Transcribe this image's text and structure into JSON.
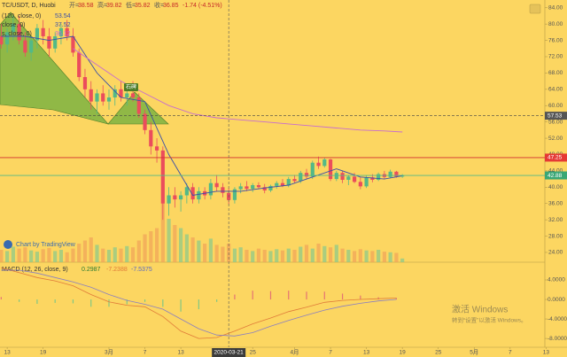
{
  "chart_data": {
    "type": "candlestick",
    "symbol": "TC/USDT, D, Huobi",
    "ohlc_legend": [
      {
        "label": "开=",
        "value": 38.58
      },
      {
        "label": "高=",
        "value": 39.82
      },
      {
        "label": "低=",
        "value": 35.82
      },
      {
        "label": "收=",
        "value": 36.85
      }
    ],
    "change": {
      "value": -1.74,
      "label": "-1.74 (-4.51%)"
    },
    "indicators": [
      {
        "name": "(120, close, 0)",
        "value": 53.54
      },
      {
        "name": "close, 0)",
        "value": 37.52
      },
      {
        "name": "s, close, 0)",
        "value": 36.12
      }
    ],
    "pattern_label": "石碑",
    "credit": "Chart by TradingView",
    "up_color": "#53b987",
    "down_color": "#eb4d5c",
    "candles": {
      "x": [
        -1,
        0,
        1,
        2,
        3,
        4,
        5,
        6,
        7,
        8,
        9,
        10,
        11,
        12,
        13,
        14,
        15,
        16,
        17,
        18,
        19,
        20,
        21,
        22,
        23,
        24,
        25,
        26,
        27,
        28,
        29,
        30,
        31,
        32,
        33,
        34,
        35,
        36,
        37,
        38,
        39,
        40,
        41,
        42,
        43,
        44,
        45,
        46,
        47,
        48,
        49,
        50,
        51,
        52,
        53,
        54,
        55,
        56,
        57,
        58,
        59,
        60,
        61,
        62,
        63,
        64,
        65,
        66
      ],
      "open": [
        77,
        75,
        78,
        80,
        76,
        73,
        76,
        79,
        77,
        74,
        77,
        79,
        77,
        73,
        67,
        64,
        61,
        63,
        61,
        62,
        64,
        62,
        63,
        62,
        58,
        54,
        50,
        49,
        36,
        38,
        37,
        38,
        40,
        37,
        39,
        38,
        41,
        40,
        38.58,
        36.85,
        39.5,
        40.2,
        39.6,
        40.5,
        40,
        39.2,
        40.3,
        41,
        40.4,
        42,
        41.5,
        43.5,
        42.6,
        46,
        45.2,
        46.8,
        42,
        43.5,
        41.8,
        42.6,
        41.3,
        40.2,
        42.4,
        41.8,
        43.2,
        42.5,
        43.8,
        42.6
      ],
      "high": [
        80,
        79,
        82,
        82,
        78,
        77,
        80,
        81,
        79,
        78,
        80,
        81,
        79,
        74,
        69,
        66,
        64,
        65,
        64,
        65,
        66,
        64,
        66,
        63,
        59,
        56,
        52,
        50,
        40,
        40,
        39,
        41,
        41,
        40,
        40,
        42,
        43,
        41,
        39.82,
        40,
        41,
        41.5,
        41,
        41.2,
        40.8,
        40.6,
        41.5,
        42,
        42.5,
        43,
        44,
        44.5,
        46.5,
        47.5,
        47.2,
        47,
        44,
        44,
        43,
        43.5,
        42.5,
        42.8,
        43.2,
        43.6,
        44,
        44.3,
        44,
        43.2
      ],
      "low": [
        74,
        73,
        76,
        75,
        72,
        71,
        74,
        75,
        72,
        73,
        75,
        76,
        72,
        66,
        62,
        59,
        58,
        60,
        59,
        60,
        61,
        60,
        61,
        57,
        53,
        48,
        46,
        32,
        33,
        35,
        34,
        36,
        36,
        36,
        37,
        37,
        39,
        37.5,
        35.82,
        36,
        38.5,
        39,
        38.8,
        39.5,
        38.5,
        38.8,
        39.6,
        40,
        40,
        41,
        41,
        42,
        42,
        44.5,
        44.8,
        41.5,
        41.5,
        41,
        40.5,
        41,
        39.5,
        39.8,
        41.2,
        41.5,
        42,
        42.2,
        42.3,
        42.3
      ],
      "close": [
        75,
        78,
        80,
        76,
        73,
        76,
        79,
        77,
        74,
        77,
        79,
        77,
        73,
        67,
        64,
        61,
        63,
        61,
        62,
        64,
        62,
        63,
        62,
        58,
        54,
        50,
        49,
        36,
        38,
        37,
        38,
        40,
        37,
        39,
        38,
        41,
        40,
        38.58,
        36.85,
        39.5,
        40.2,
        39.6,
        40.5,
        40,
        39.2,
        40.3,
        41,
        40.4,
        42,
        41.5,
        43.5,
        42.6,
        46,
        45.2,
        46.8,
        42,
        43.5,
        41.8,
        42.6,
        41.3,
        40.2,
        42.4,
        41.8,
        43.2,
        42.5,
        43.8,
        42.6,
        42.88
      ],
      "volume": [
        20,
        18,
        25,
        22,
        24,
        19,
        17,
        21,
        23,
        18,
        20,
        16,
        22,
        30,
        35,
        40,
        28,
        22,
        20,
        24,
        22,
        26,
        24,
        35,
        45,
        50,
        55,
        95,
        70,
        60,
        55,
        45,
        40,
        35,
        30,
        38,
        28,
        25,
        30,
        22,
        24,
        20,
        18,
        22,
        20,
        18,
        21,
        19,
        22,
        20,
        25,
        28,
        22,
        30,
        26,
        24,
        28,
        22,
        20,
        18,
        21,
        19,
        18,
        20,
        17,
        16,
        15,
        6
      ]
    },
    "vlim": [
      0,
      100
    ],
    "moving_averages": {
      "x": [
        -1,
        3,
        7,
        11,
        15,
        19,
        23,
        27,
        31,
        35,
        39,
        43,
        47,
        51,
        55,
        59,
        63,
        66
      ],
      "series": [
        {
          "color": "#3a4fa8",
          "values": [
            77,
            77,
            76,
            77,
            68,
            62,
            61,
            48,
            38,
            39,
            39,
            39.8,
            40.5,
            42.5,
            44.5,
            42.5,
            42,
            42.8
          ]
        },
        {
          "color": "#c86ccf",
          "values": [
            null,
            null,
            null,
            74,
            70,
            66,
            63,
            60,
            58,
            57,
            56.5,
            56,
            55.5,
            55,
            54.5,
            54,
            53.8,
            53.54
          ]
        }
      ]
    },
    "hlines": [
      {
        "value": 57.53,
        "color": "#444",
        "dashed": true,
        "tag_color": "#555"
      },
      {
        "value": 47.25,
        "color": "#d32f2f",
        "dashed": false,
        "tag_color": "#e53935"
      },
      {
        "value": 42.88,
        "color": "#53b987",
        "dashed": false,
        "tag_color": "#3aa776"
      }
    ],
    "crosshair": {
      "x": 37,
      "label": "2020-03-21"
    },
    "xlim": [
      -1.2,
      89.8
    ],
    "xticks": [
      {
        "value": 0,
        "label": "13"
      },
      {
        "value": 6,
        "label": "19"
      },
      {
        "value": 17,
        "label": "3月"
      },
      {
        "value": 23,
        "label": "7"
      },
      {
        "value": 29,
        "label": "13"
      },
      {
        "value": 41,
        "label": "25"
      },
      {
        "value": 48,
        "label": "4月"
      },
      {
        "value": 54,
        "label": "7"
      },
      {
        "value": 60,
        "label": "13"
      },
      {
        "value": 66,
        "label": "19"
      },
      {
        "value": 72,
        "label": "25"
      },
      {
        "value": 78,
        "label": "5月"
      },
      {
        "value": 84,
        "label": "7"
      },
      {
        "value": 90,
        "label": "13"
      }
    ],
    "ylim": [
      21.6,
      85.9
    ],
    "yticks": [
      {
        "value": 24,
        "label": "24.00"
      },
      {
        "value": 28,
        "label": "28.00"
      },
      {
        "value": 32,
        "label": "32.00"
      },
      {
        "value": 36,
        "label": "36.00"
      },
      {
        "value": 40,
        "label": "40.00"
      },
      {
        "value": 44,
        "label": "44.00"
      },
      {
        "value": 48,
        "label": "48.00"
      },
      {
        "value": 52,
        "label": "52.00"
      },
      {
        "value": 56,
        "label": "56.00"
      },
      {
        "value": 60,
        "label": "60.00"
      },
      {
        "value": 64,
        "label": "64.00"
      },
      {
        "value": 68,
        "label": "68.00"
      },
      {
        "value": 72,
        "label": "72.00"
      },
      {
        "value": 76,
        "label": "76.00"
      },
      {
        "value": 80,
        "label": "80.00"
      },
      {
        "value": 84,
        "label": "84.00"
      }
    ],
    "macd": {
      "title": "MACD (12, 26, close, 9)",
      "legend_values": [
        0.2987,
        -7.2388,
        -7.5375
      ],
      "x": [
        -1,
        2,
        5,
        8,
        11,
        14,
        17,
        20,
        23,
        26,
        29,
        32,
        35,
        38,
        41,
        44,
        47,
        50,
        53,
        56,
        59,
        62,
        65
      ],
      "macd": [
        6.5,
        5.5,
        4.5,
        3.8,
        2.8,
        1,
        -0.5,
        -1.2,
        -1.5,
        -3.5,
        -6.5,
        -8,
        -7.8,
        -6.5,
        -5,
        -3.8,
        -2.5,
        -1.6,
        -0.6,
        -0.2,
        0,
        0.15,
        0.3
      ],
      "signal": [
        6,
        6,
        5.4,
        4.5,
        3.6,
        2.5,
        1,
        -0.2,
        -1,
        -2,
        -4,
        -6,
        -7.3,
        -7.5,
        -6.8,
        -5.5,
        -4.3,
        -3.2,
        -2.2,
        -1.4,
        -0.8,
        -0.3,
        0
      ],
      "hist": [
        0.5,
        -0.5,
        -0.9,
        -0.7,
        -0.8,
        -1.5,
        -1.5,
        -1,
        -0.5,
        -1.5,
        -2.5,
        -2,
        -0.5,
        1,
        1.8,
        1.7,
        1.8,
        1.6,
        1.6,
        1.2,
        0.8,
        0.45,
        0.3
      ],
      "macd_color": "#e07b39",
      "signal_color": "#8a7fc0",
      "ylim": [
        -9.8,
        7.27
      ],
      "yticks": [
        {
          "value": 4,
          "label": "4.0000"
        },
        {
          "value": 0,
          "label": "0.0000"
        },
        {
          "value": -4,
          "label": "-4.0000"
        },
        {
          "value": -8,
          "label": "-8.0000"
        }
      ]
    },
    "watermark": [
      "激活 Windows",
      "转到“设置”以激活 Windows。"
    ]
  }
}
